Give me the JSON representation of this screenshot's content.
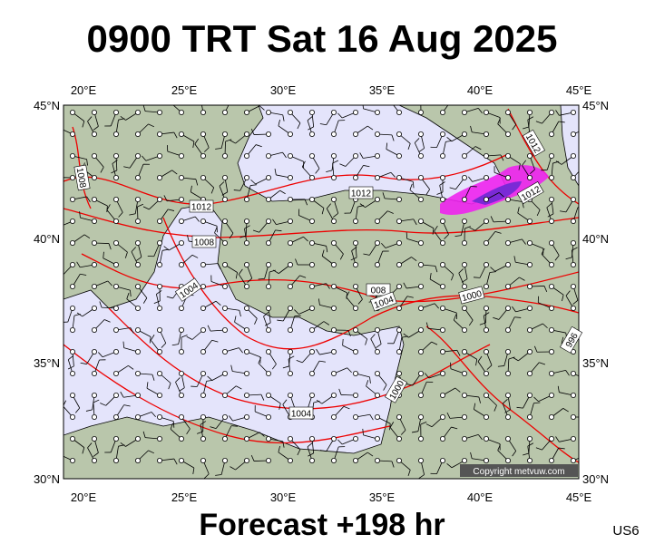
{
  "header": {
    "title": "0900 TRT Sat 16 Aug 2025"
  },
  "footer": {
    "forecast": "Forecast +198 hr",
    "region": "US6"
  },
  "copyright": "Copyright metvuw.com",
  "axes": {
    "longitudes": [
      "20°E",
      "25°E",
      "30°E",
      "35°E",
      "40°E",
      "45°E"
    ],
    "latitudes": [
      "45°N",
      "40°N",
      "35°N",
      "30°N"
    ]
  },
  "isobar_labels": [
    "1012",
    "1008",
    "1004",
    "1012",
    "008",
    "1004",
    "1004",
    "1000",
    "1012",
    "1012",
    "1008",
    "1000",
    "996"
  ]
}
